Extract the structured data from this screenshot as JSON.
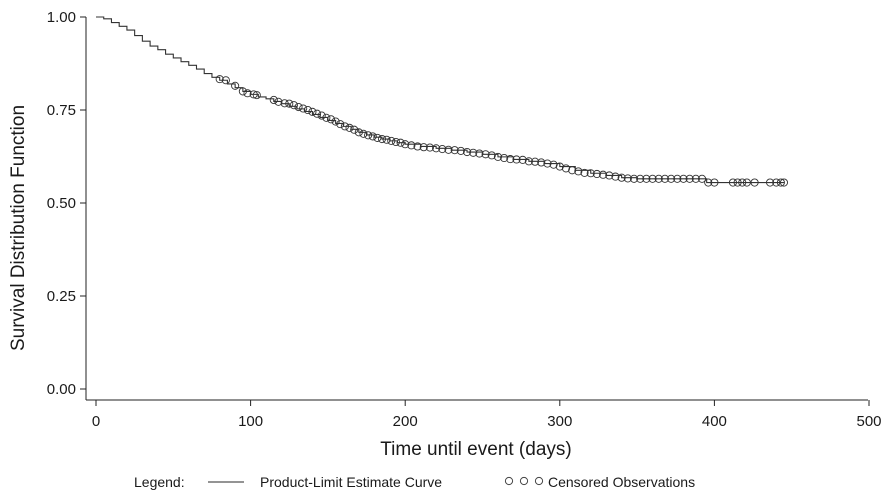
{
  "chart_data": {
    "type": "line",
    "title": "",
    "xlabel": "Time until event (days)",
    "ylabel": "Survival Distribution Function",
    "xlim": [
      0,
      500
    ],
    "ylim": [
      0,
      1
    ],
    "x_ticks": [
      {
        "value": 0,
        "label": "0"
      },
      {
        "value": 100,
        "label": "100"
      },
      {
        "value": 200,
        "label": "200"
      },
      {
        "value": 300,
        "label": "300"
      },
      {
        "value": 400,
        "label": "400"
      },
      {
        "value": 500,
        "label": "500"
      }
    ],
    "y_ticks": [
      {
        "value": 0,
        "label": "0.00"
      },
      {
        "value": 0.25,
        "label": "0.25"
      },
      {
        "value": 0.5,
        "label": "0.50"
      },
      {
        "value": 0.75,
        "label": "0.75"
      },
      {
        "value": 1,
        "label": "1.00"
      }
    ],
    "grid": false,
    "legend": {
      "placement": "bottom",
      "prefix": "Legend:",
      "line_label": "Product-Limit Estimate Curve",
      "marker_label": "Censored Observations"
    },
    "series": [
      {
        "name": "Product-Limit Estimate Curve",
        "step": true,
        "x": [
          0,
          5,
          10,
          15,
          20,
          25,
          30,
          35,
          40,
          45,
          50,
          55,
          60,
          65,
          70,
          75,
          80,
          85,
          90,
          95,
          100,
          105,
          110,
          115,
          120,
          125,
          130,
          135,
          140,
          145,
          150,
          155,
          160,
          165,
          170,
          175,
          180,
          185,
          190,
          195,
          200,
          210,
          220,
          230,
          240,
          250,
          260,
          270,
          280,
          290,
          300,
          310,
          320,
          330,
          340,
          350,
          360,
          370,
          380,
          390,
          395,
          400,
          420,
          445
        ],
        "y": [
          1.0,
          0.995,
          0.985,
          0.975,
          0.965,
          0.95,
          0.935,
          0.922,
          0.912,
          0.9,
          0.89,
          0.88,
          0.87,
          0.86,
          0.848,
          0.838,
          0.83,
          0.82,
          0.81,
          0.8,
          0.792,
          0.785,
          0.78,
          0.773,
          0.767,
          0.76,
          0.753,
          0.746,
          0.738,
          0.73,
          0.722,
          0.714,
          0.706,
          0.698,
          0.69,
          0.683,
          0.677,
          0.672,
          0.667,
          0.662,
          0.658,
          0.652,
          0.647,
          0.642,
          0.637,
          0.631,
          0.624,
          0.617,
          0.612,
          0.606,
          0.598,
          0.588,
          0.58,
          0.574,
          0.568,
          0.565,
          0.565,
          0.565,
          0.565,
          0.565,
          0.555,
          0.555,
          0.555,
          0.555
        ]
      },
      {
        "name": "Censored Observations",
        "type": "scatter",
        "marker": "open-circle",
        "x": [
          80,
          84,
          90,
          95,
          98,
          102,
          104,
          115,
          118,
          122,
          125,
          128,
          131,
          134,
          137,
          140,
          143,
          146,
          149,
          152,
          155,
          158,
          161,
          164,
          167,
          170,
          173,
          176,
          179,
          182,
          185,
          188,
          191,
          194,
          197,
          200,
          204,
          208,
          212,
          216,
          220,
          224,
          228,
          232,
          236,
          240,
          244,
          248,
          252,
          256,
          260,
          264,
          268,
          272,
          276,
          280,
          284,
          288,
          292,
          296,
          300,
          304,
          308,
          312,
          316,
          320,
          324,
          328,
          332,
          336,
          340,
          344,
          348,
          352,
          356,
          360,
          364,
          368,
          372,
          376,
          380,
          384,
          388,
          392,
          396,
          400,
          412,
          415,
          418,
          421,
          426,
          436,
          440,
          443,
          445
        ],
        "y": [
          0.833,
          0.83,
          0.815,
          0.8,
          0.795,
          0.792,
          0.79,
          0.777,
          0.772,
          0.768,
          0.767,
          0.763,
          0.758,
          0.754,
          0.75,
          0.745,
          0.74,
          0.735,
          0.729,
          0.725,
          0.719,
          0.712,
          0.706,
          0.702,
          0.697,
          0.69,
          0.686,
          0.682,
          0.679,
          0.675,
          0.672,
          0.67,
          0.667,
          0.664,
          0.662,
          0.658,
          0.655,
          0.652,
          0.65,
          0.649,
          0.647,
          0.645,
          0.643,
          0.642,
          0.64,
          0.637,
          0.635,
          0.633,
          0.631,
          0.628,
          0.624,
          0.621,
          0.618,
          0.617,
          0.616,
          0.612,
          0.611,
          0.609,
          0.606,
          0.603,
          0.598,
          0.593,
          0.588,
          0.585,
          0.581,
          0.58,
          0.578,
          0.576,
          0.574,
          0.571,
          0.568,
          0.566,
          0.565,
          0.565,
          0.565,
          0.565,
          0.565,
          0.565,
          0.565,
          0.565,
          0.565,
          0.565,
          0.565,
          0.565,
          0.555,
          0.555,
          0.555,
          0.555,
          0.555,
          0.555,
          0.555,
          0.555,
          0.555,
          0.555,
          0.555
        ]
      }
    ]
  }
}
